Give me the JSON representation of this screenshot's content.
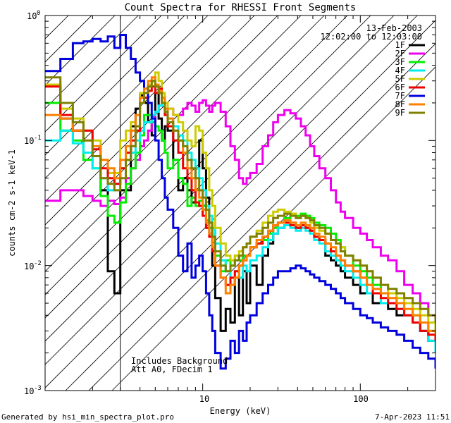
{
  "chart_data": {
    "type": "line",
    "title": "Count Spectra for RHESSI Front Segments",
    "xlabel": "Energy (keV)",
    "ylabel": "counts cm-2 s-1 keV-1",
    "xscale": "log",
    "yscale": "log",
    "xlim": [
      1.0,
      300.0
    ],
    "ylim": [
      0.001,
      1.0
    ],
    "x_tick_labels": [
      "10",
      "100"
    ],
    "y_tick_labels": [
      {
        "base": "10",
        "exp": "0"
      },
      {
        "base": "10",
        "exp": "-1"
      },
      {
        "base": "10",
        "exp": "-2"
      },
      {
        "base": "10",
        "exp": "-3"
      }
    ],
    "date": "13-Feb-2003",
    "time_range": "12:02:00 to 12:03:00",
    "annotations": [
      "Includes Background",
      "Att A0, FDecim 1"
    ],
    "hatched_region": {
      "x_range": [
        1.0,
        3.0
      ]
    },
    "x": [
      1.0,
      1.25,
      1.5,
      1.75,
      2.0,
      2.25,
      2.5,
      2.75,
      3.0,
      3.25,
      3.5,
      3.75,
      4.0,
      4.25,
      4.5,
      4.75,
      5.0,
      5.25,
      5.5,
      5.75,
      6.0,
      6.5,
      7.0,
      7.5,
      8.0,
      8.5,
      9.0,
      9.5,
      10.0,
      10.5,
      11.0,
      11.5,
      12.0,
      13.0,
      14.0,
      15.0,
      16.0,
      17.0,
      18.0,
      19.0,
      20.0,
      22.0,
      24.0,
      26.0,
      28.0,
      30.0,
      33.0,
      36.0,
      39.0,
      42.0,
      45.0,
      48.0,
      51.0,
      55.0,
      60.0,
      65.0,
      70.0,
      75.0,
      80.0,
      90.0,
      100.0,
      110.0,
      120.0,
      135.0,
      150.0,
      170.0,
      190.0,
      215.0,
      240.0,
      270.0,
      300.0
    ],
    "series": [
      {
        "name": "1F",
        "color": "#000000",
        "values": [
          0.28,
          0.15,
          0.12,
          0.08,
          0.075,
          0.04,
          0.009,
          0.006,
          0.04,
          0.04,
          0.13,
          0.18,
          0.23,
          0.2,
          0.14,
          0.11,
          0.24,
          0.15,
          0.1,
          0.13,
          0.12,
          0.07,
          0.04,
          0.05,
          0.04,
          0.032,
          0.06,
          0.1,
          0.06,
          0.035,
          0.02,
          0.01,
          0.0055,
          0.003,
          0.0045,
          0.0035,
          0.008,
          0.004,
          0.009,
          0.005,
          0.01,
          0.007,
          0.012,
          0.015,
          0.018,
          0.02,
          0.021,
          0.022,
          0.02,
          0.021,
          0.02,
          0.019,
          0.017,
          0.016,
          0.012,
          0.011,
          0.01,
          0.009,
          0.008,
          0.007,
          0.006,
          0.006,
          0.005,
          0.005,
          0.0045,
          0.004,
          0.004,
          0.0035,
          0.003,
          0.0025,
          0.002
        ]
      },
      {
        "name": "2F",
        "color": "#ee00ee",
        "values": [
          0.033,
          0.04,
          0.04,
          0.036,
          0.033,
          0.03,
          0.033,
          0.031,
          0.035,
          0.05,
          0.06,
          0.07,
          0.09,
          0.1,
          0.12,
          0.14,
          0.17,
          0.19,
          0.2,
          0.2,
          0.18,
          0.16,
          0.16,
          0.18,
          0.2,
          0.19,
          0.17,
          0.2,
          0.21,
          0.19,
          0.17,
          0.19,
          0.2,
          0.17,
          0.13,
          0.09,
          0.07,
          0.05,
          0.045,
          0.05,
          0.055,
          0.065,
          0.09,
          0.11,
          0.14,
          0.16,
          0.175,
          0.165,
          0.15,
          0.13,
          0.11,
          0.09,
          0.075,
          0.06,
          0.05,
          0.04,
          0.032,
          0.027,
          0.024,
          0.02,
          0.018,
          0.016,
          0.014,
          0.012,
          0.011,
          0.009,
          0.007,
          0.006,
          0.005,
          0.004,
          0.0035
        ]
      },
      {
        "name": "3F",
        "color": "#00ee00",
        "values": [
          0.2,
          0.12,
          0.1,
          0.07,
          0.06,
          0.036,
          0.025,
          0.022,
          0.032,
          0.045,
          0.06,
          0.08,
          0.11,
          0.16,
          0.16,
          0.14,
          0.13,
          0.12,
          0.1,
          0.08,
          0.06,
          0.07,
          0.05,
          0.045,
          0.03,
          0.035,
          0.03,
          0.033,
          0.03,
          0.023,
          0.02,
          0.017,
          0.012,
          0.009,
          0.011,
          0.01,
          0.012,
          0.011,
          0.012,
          0.012,
          0.014,
          0.015,
          0.016,
          0.018,
          0.02,
          0.022,
          0.024,
          0.026,
          0.025,
          0.026,
          0.025,
          0.024,
          0.022,
          0.021,
          0.02,
          0.018,
          0.016,
          0.014,
          0.012,
          0.01,
          0.009,
          0.008,
          0.007,
          0.006,
          0.006,
          0.005,
          0.005,
          0.004,
          0.0035,
          0.003,
          0.0025
        ]
      },
      {
        "name": "4F",
        "color": "#00eeee",
        "values": [
          0.1,
          0.12,
          0.095,
          0.08,
          0.06,
          0.05,
          0.04,
          0.045,
          0.06,
          0.07,
          0.08,
          0.1,
          0.12,
          0.14,
          0.14,
          0.16,
          0.17,
          0.19,
          0.2,
          0.18,
          0.15,
          0.13,
          0.11,
          0.1,
          0.08,
          0.07,
          0.06,
          0.05,
          0.04,
          0.03,
          0.025,
          0.02,
          0.015,
          0.011,
          0.009,
          0.008,
          0.009,
          0.008,
          0.01,
          0.009,
          0.011,
          0.012,
          0.014,
          0.016,
          0.018,
          0.02,
          0.021,
          0.02,
          0.019,
          0.02,
          0.019,
          0.018,
          0.016,
          0.015,
          0.013,
          0.012,
          0.011,
          0.01,
          0.009,
          0.008,
          0.007,
          0.006,
          0.006,
          0.005,
          0.005,
          0.0045,
          0.004,
          0.0035,
          0.003,
          0.0025,
          0.002
        ]
      },
      {
        "name": "5F",
        "color": "#cccc00",
        "values": [
          0.28,
          0.18,
          0.15,
          0.12,
          0.1,
          0.07,
          0.055,
          0.055,
          0.1,
          0.12,
          0.14,
          0.12,
          0.24,
          0.22,
          0.28,
          0.3,
          0.35,
          0.3,
          0.24,
          0.2,
          0.18,
          0.16,
          0.14,
          0.12,
          0.1,
          0.09,
          0.13,
          0.12,
          0.08,
          0.06,
          0.04,
          0.03,
          0.02,
          0.015,
          0.012,
          0.011,
          0.012,
          0.013,
          0.014,
          0.015,
          0.017,
          0.019,
          0.022,
          0.025,
          0.027,
          0.028,
          0.027,
          0.026,
          0.024,
          0.025,
          0.024,
          0.022,
          0.02,
          0.019,
          0.018,
          0.016,
          0.015,
          0.014,
          0.012,
          0.011,
          0.01,
          0.009,
          0.008,
          0.007,
          0.006,
          0.0055,
          0.005,
          0.0045,
          0.004,
          0.0035,
          0.003
        ]
      },
      {
        "name": "6F",
        "color": "#ee0000",
        "values": [
          0.27,
          0.16,
          0.12,
          0.12,
          0.085,
          0.06,
          0.05,
          0.045,
          0.06,
          0.08,
          0.1,
          0.12,
          0.2,
          0.22,
          0.25,
          0.27,
          0.24,
          0.26,
          0.2,
          0.16,
          0.13,
          0.1,
          0.08,
          0.06,
          0.05,
          0.04,
          0.032,
          0.03,
          0.025,
          0.02,
          0.017,
          0.013,
          0.01,
          0.008,
          0.007,
          0.008,
          0.009,
          0.01,
          0.011,
          0.012,
          0.014,
          0.015,
          0.017,
          0.019,
          0.021,
          0.022,
          0.022,
          0.021,
          0.02,
          0.021,
          0.02,
          0.019,
          0.017,
          0.016,
          0.015,
          0.013,
          0.012,
          0.011,
          0.01,
          0.009,
          0.008,
          0.007,
          0.006,
          0.0055,
          0.005,
          0.0045,
          0.004,
          0.0035,
          0.003,
          0.0028,
          0.0025
        ]
      },
      {
        "name": "7F",
        "color": "#0000dd",
        "values": [
          0.36,
          0.45,
          0.6,
          0.62,
          0.65,
          0.62,
          0.68,
          0.55,
          0.7,
          0.55,
          0.45,
          0.35,
          0.3,
          0.26,
          0.2,
          0.15,
          0.1,
          0.07,
          0.05,
          0.035,
          0.028,
          0.02,
          0.012,
          0.009,
          0.015,
          0.008,
          0.01,
          0.012,
          0.009,
          0.006,
          0.004,
          0.003,
          0.002,
          0.0015,
          0.0018,
          0.0025,
          0.002,
          0.003,
          0.0025,
          0.0035,
          0.004,
          0.005,
          0.006,
          0.007,
          0.008,
          0.009,
          0.009,
          0.0095,
          0.01,
          0.0095,
          0.009,
          0.0085,
          0.008,
          0.0075,
          0.007,
          0.0065,
          0.006,
          0.0055,
          0.005,
          0.0045,
          0.004,
          0.0038,
          0.0035,
          0.0032,
          0.003,
          0.0028,
          0.0025,
          0.0022,
          0.002,
          0.0018,
          0.0015
        ]
      },
      {
        "name": "8F",
        "color": "#ff7f00",
        "values": [
          0.16,
          0.15,
          0.12,
          0.1,
          0.09,
          0.07,
          0.06,
          0.05,
          0.07,
          0.09,
          0.12,
          0.16,
          0.22,
          0.26,
          0.3,
          0.32,
          0.28,
          0.25,
          0.22,
          0.18,
          0.15,
          0.12,
          0.1,
          0.08,
          0.06,
          0.05,
          0.04,
          0.035,
          0.028,
          0.022,
          0.018,
          0.014,
          0.01,
          0.008,
          0.006,
          0.007,
          0.008,
          0.01,
          0.011,
          0.012,
          0.014,
          0.016,
          0.017,
          0.019,
          0.021,
          0.022,
          0.023,
          0.022,
          0.021,
          0.022,
          0.021,
          0.02,
          0.018,
          0.017,
          0.015,
          0.014,
          0.012,
          0.011,
          0.01,
          0.009,
          0.008,
          0.007,
          0.0065,
          0.006,
          0.0055,
          0.005,
          0.0045,
          0.004,
          0.0035,
          0.003,
          0.0028
        ]
      },
      {
        "name": "9F",
        "color": "#808000",
        "values": [
          0.32,
          0.2,
          0.14,
          0.1,
          0.075,
          0.05,
          0.045,
          0.04,
          0.05,
          0.07,
          0.09,
          0.13,
          0.2,
          0.24,
          0.27,
          0.3,
          0.27,
          0.24,
          0.2,
          0.17,
          0.14,
          0.12,
          0.1,
          0.09,
          0.07,
          0.06,
          0.05,
          0.04,
          0.035,
          0.028,
          0.022,
          0.017,
          0.013,
          0.01,
          0.009,
          0.01,
          0.011,
          0.012,
          0.014,
          0.015,
          0.017,
          0.018,
          0.02,
          0.022,
          0.024,
          0.025,
          0.026,
          0.025,
          0.024,
          0.025,
          0.024,
          0.023,
          0.021,
          0.02,
          0.018,
          0.016,
          0.015,
          0.013,
          0.012,
          0.011,
          0.01,
          0.009,
          0.008,
          0.007,
          0.0065,
          0.006,
          0.0055,
          0.005,
          0.0045,
          0.004,
          0.0035
        ]
      }
    ]
  },
  "footer": {
    "generated_by": "Generated by hsi_min_spectra_plot.pro",
    "timestamp": "7-Apr-2023 11:51"
  }
}
